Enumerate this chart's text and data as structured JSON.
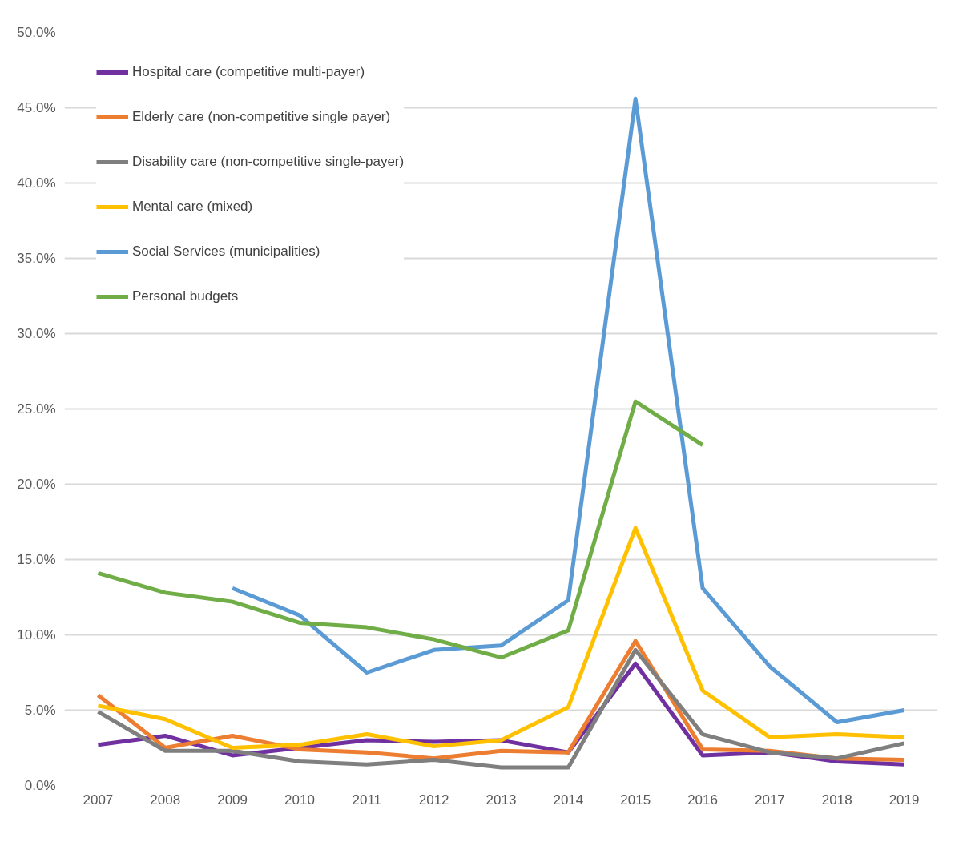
{
  "chart_data": {
    "type": "line",
    "categories": [
      "2007",
      "2008",
      "2009",
      "2010",
      "2011",
      "2012",
      "2013",
      "2014",
      "2015",
      "2016",
      "2017",
      "2018",
      "2019"
    ],
    "series": [
      {
        "name": "Hospital care (competitive multi-payer)",
        "color": "#7030a0",
        "values": [
          2.7,
          3.3,
          2.0,
          2.5,
          3.0,
          2.9,
          3.0,
          2.2,
          8.1,
          2.0,
          2.2,
          1.6,
          1.4
        ]
      },
      {
        "name": "Elderly care (non-competitive single payer)",
        "color": "#ed7d31",
        "values": [
          6.0,
          2.5,
          3.3,
          2.4,
          2.2,
          1.8,
          2.3,
          2.2,
          9.6,
          2.4,
          2.3,
          1.8,
          1.7
        ]
      },
      {
        "name": "Disability care (non-competitive single-payer)",
        "color": "#7f7f7f",
        "values": [
          4.9,
          2.3,
          2.3,
          1.6,
          1.4,
          1.7,
          1.2,
          1.2,
          9.0,
          3.4,
          2.2,
          1.8,
          2.8
        ]
      },
      {
        "name": "Mental care (mixed)",
        "color": "#ffc000",
        "values": [
          5.3,
          4.4,
          2.5,
          2.7,
          3.4,
          2.6,
          3.0,
          5.2,
          17.1,
          6.3,
          3.2,
          3.4,
          3.2
        ]
      },
      {
        "name": "Social Services (municipalities)",
        "color": "#5b9bd5",
        "values": [
          null,
          null,
          13.1,
          11.3,
          7.5,
          9.0,
          9.3,
          12.3,
          45.6,
          13.1,
          7.9,
          4.2,
          5.0
        ]
      },
      {
        "name": "Personal budgets",
        "color": "#70ad47",
        "values": [
          14.1,
          12.8,
          12.2,
          10.8,
          10.5,
          9.7,
          8.5,
          10.3,
          25.5,
          22.6,
          null,
          null,
          null
        ]
      }
    ],
    "ylim": [
      0,
      50
    ],
    "yticks": [
      {
        "value": 0,
        "label": "0.0%"
      },
      {
        "value": 5,
        "label": "5.0%"
      },
      {
        "value": 10,
        "label": "10.0%"
      },
      {
        "value": 15,
        "label": "15.0%"
      },
      {
        "value": 20,
        "label": "20.0%"
      },
      {
        "value": 25,
        "label": "25.0%"
      },
      {
        "value": 30,
        "label": "30.0%"
      },
      {
        "value": 35,
        "label": "35.0%"
      },
      {
        "value": 40,
        "label": "40.0%"
      },
      {
        "value": 45,
        "label": "45.0%"
      },
      {
        "value": 50,
        "label": "50.0%"
      }
    ],
    "grid": "y",
    "legend": "top left",
    "marker": "none",
    "line_style": "solid"
  }
}
